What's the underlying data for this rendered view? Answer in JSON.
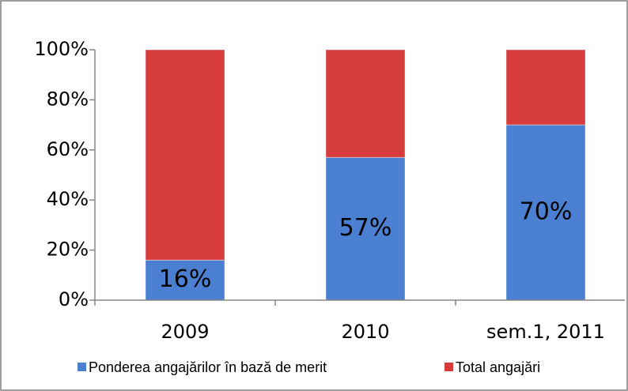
{
  "chart_data": {
    "type": "stacked_bar",
    "categories": [
      "2009",
      "2010",
      "sem.1, 2011"
    ],
    "series": [
      {
        "name": "Ponderea angajărilor în bază de merit",
        "color": "#4a7fd1",
        "values": [
          16,
          57,
          70
        ],
        "value_labels": [
          "16%",
          "57%",
          "70%"
        ]
      },
      {
        "name": "Total angajări",
        "color": "#d63c3c",
        "values": [
          84,
          43,
          30
        ]
      }
    ],
    "ylim": [
      0,
      100
    ],
    "yticks": [
      {
        "value": 0,
        "label": "0%"
      },
      {
        "value": 20,
        "label": "20%"
      },
      {
        "value": 40,
        "label": "40%"
      },
      {
        "value": 60,
        "label": "60%"
      },
      {
        "value": 80,
        "label": "80%"
      },
      {
        "value": 100,
        "label": "100%"
      }
    ],
    "grid": false
  }
}
